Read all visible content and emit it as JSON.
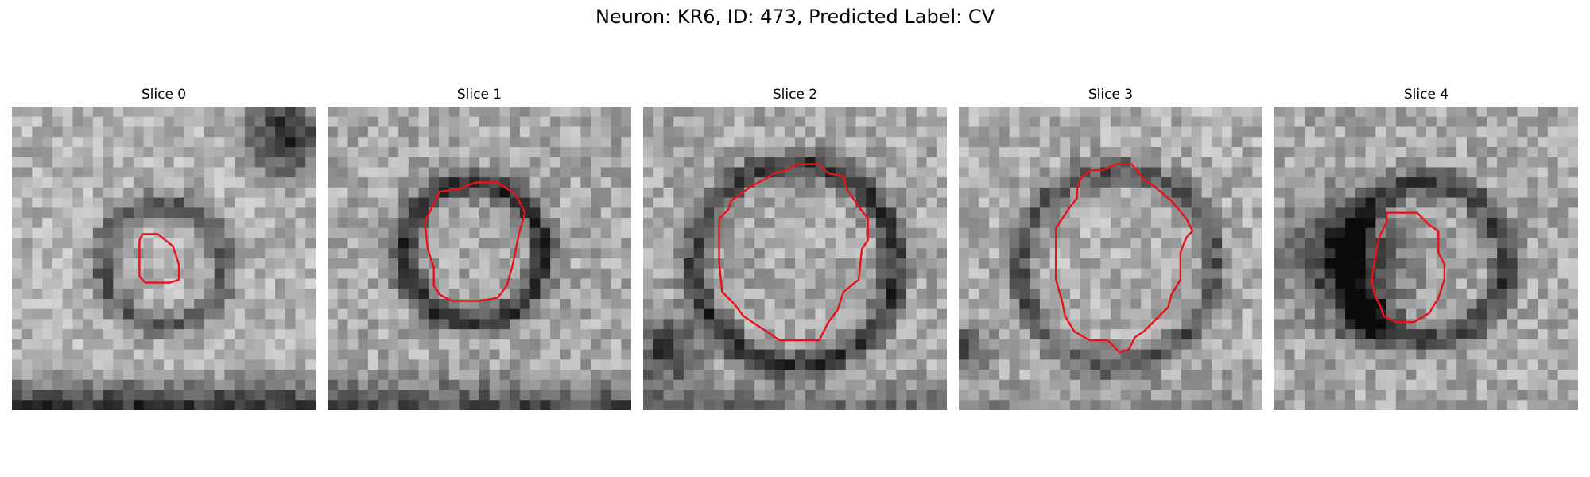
{
  "figure": {
    "title": "Neuron: KR6, ID: 473, Predicted Label: CV",
    "colors": {
      "background": "#ffffff",
      "contour": "#e8121b"
    },
    "colormap": "gray",
    "panels": [
      {
        "title": "Slice 0",
        "image_name": "em-slice-0-image",
        "contour_name": "slice-0-segmentation-contour"
      },
      {
        "title": "Slice 1",
        "image_name": "em-slice-1-image",
        "contour_name": "slice-1-segmentation-contour"
      },
      {
        "title": "Slice 2",
        "image_name": "em-slice-2-image",
        "contour_name": "slice-2-segmentation-contour"
      },
      {
        "title": "Slice 3",
        "image_name": "em-slice-3-image",
        "contour_name": "slice-3-segmentation-contour"
      },
      {
        "title": "Slice 4",
        "image_name": "em-slice-4-image",
        "contour_name": "slice-4-segmentation-contour"
      }
    ]
  }
}
